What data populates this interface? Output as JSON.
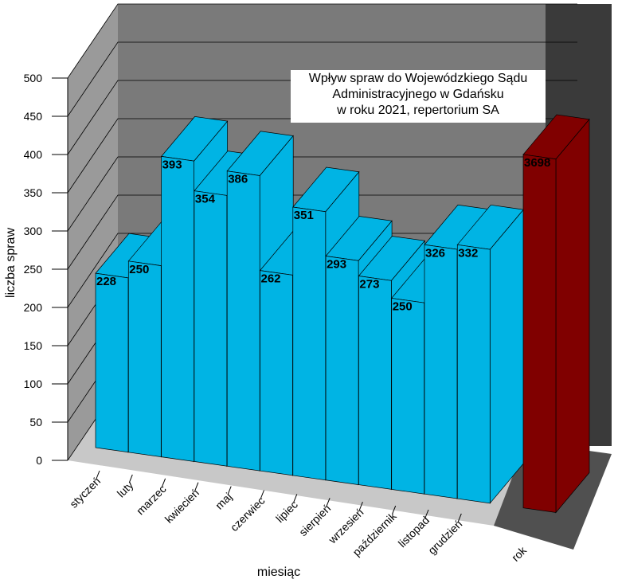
{
  "chart_data": {
    "type": "bar3d",
    "title_lines": [
      "Wpływ spraw do Wojewódzkiego Sądu",
      "Administracyjnego w Gdańsku",
      "w roku 2021, repertorium SA"
    ],
    "y_label": "liczba spraw",
    "x_label": "miesiąc",
    "categories": [
      "styczeń",
      "luty",
      "marzec",
      "kwiecień",
      "maj",
      "czerwiec",
      "lipiec",
      "sierpień",
      "wrzesień",
      "październik",
      "listopad",
      "grudzień"
    ],
    "values": [
      228,
      250,
      393,
      354,
      386,
      262,
      351,
      293,
      273,
      250,
      326,
      332
    ],
    "color": "#00b4e4",
    "total": {
      "category": "rok",
      "value": 3698,
      "color": "#800000",
      "axis": "y2"
    },
    "ylim": [
      0,
      500
    ],
    "yticks": [
      0,
      50,
      100,
      150,
      200,
      250,
      300,
      350,
      400,
      450,
      500
    ],
    "y2lim": [
      0,
      4000
    ],
    "grid": true
  }
}
